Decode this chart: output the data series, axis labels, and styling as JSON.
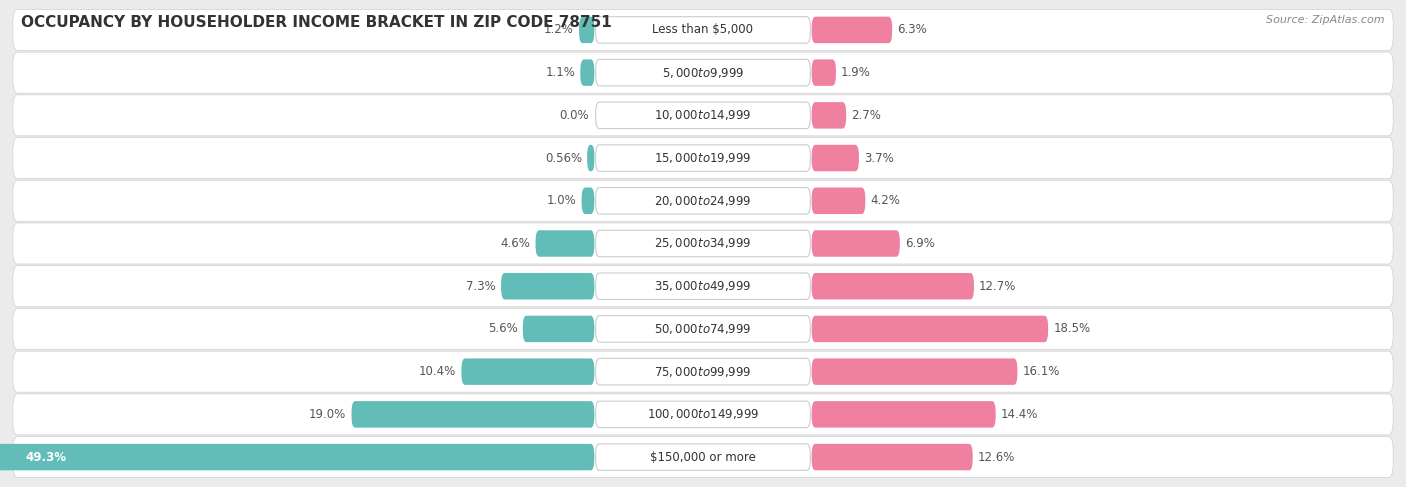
{
  "title": "OCCUPANCY BY HOUSEHOLDER INCOME BRACKET IN ZIP CODE 78751",
  "source": "Source: ZipAtlas.com",
  "categories": [
    "Less than $5,000",
    "$5,000 to $9,999",
    "$10,000 to $14,999",
    "$15,000 to $19,999",
    "$20,000 to $24,999",
    "$25,000 to $34,999",
    "$35,000 to $49,999",
    "$50,000 to $74,999",
    "$75,000 to $99,999",
    "$100,000 to $149,999",
    "$150,000 or more"
  ],
  "owner_values": [
    1.2,
    1.1,
    0.0,
    0.56,
    1.0,
    4.6,
    7.3,
    5.6,
    10.4,
    19.0,
    49.3
  ],
  "renter_values": [
    6.3,
    1.9,
    2.7,
    3.7,
    4.2,
    6.9,
    12.7,
    18.5,
    16.1,
    14.4,
    12.6
  ],
  "owner_labels": [
    "1.2%",
    "1.1%",
    "0.0%",
    "0.56%",
    "1.0%",
    "4.6%",
    "7.3%",
    "5.6%",
    "10.4%",
    "19.0%",
    "49.3%"
  ],
  "renter_labels": [
    "6.3%",
    "1.9%",
    "2.7%",
    "3.7%",
    "4.2%",
    "6.9%",
    "12.7%",
    "18.5%",
    "16.1%",
    "14.4%",
    "12.6%"
  ],
  "owner_color": "#62BDB9",
  "renter_color": "#F080A0",
  "bg_color": "#EBEBEB",
  "row_bg_color": "#FFFFFF",
  "title_fontsize": 11,
  "axis_limit": 50.0,
  "label_fontsize": 8.5,
  "category_fontsize": 8.5,
  "source_fontsize": 8
}
